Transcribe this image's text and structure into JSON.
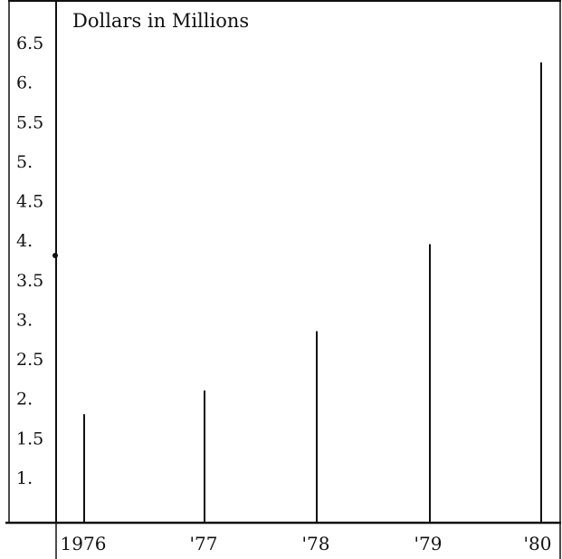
{
  "chart_data": {
    "type": "bar",
    "title": "Dollars in Millions",
    "categories": [
      "1976",
      "'77",
      "'78",
      "'79",
      "'80"
    ],
    "values": [
      1.8,
      2.1,
      2.85,
      3.95,
      6.25
    ],
    "yticks": [
      "1.",
      "1.5",
      "2.",
      "2.5",
      "3.",
      "3.5",
      "4.",
      "4.5",
      "5.",
      "5.5",
      "6.",
      "6.5"
    ],
    "ytick_values": [
      1,
      1.5,
      2,
      2.5,
      3,
      3.5,
      4,
      4.5,
      5,
      5.5,
      6,
      6.5
    ],
    "xlabel": "",
    "ylabel": "",
    "ylim": [
      0.75,
      6.75
    ],
    "grid": false,
    "legend": "none",
    "colors": {
      "line": "#111111",
      "background": "#ffffff"
    }
  }
}
